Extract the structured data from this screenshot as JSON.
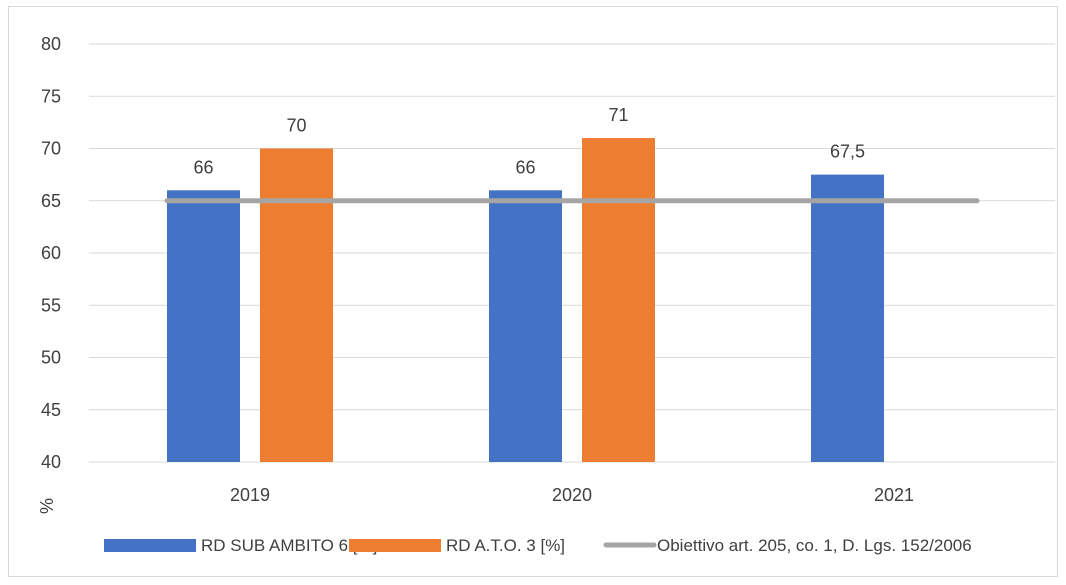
{
  "chart_data": {
    "type": "bar",
    "categories": [
      "2019",
      "2020",
      "2021"
    ],
    "series": [
      {
        "name": "RD SUB AMBITO 6 [%]",
        "type": "bar",
        "color": "#4472c4",
        "values": [
          66,
          66,
          67.5
        ],
        "labels": [
          "66",
          "66",
          "67,5"
        ]
      },
      {
        "name": "RD A.T.O. 3 [%]",
        "type": "bar",
        "color": "#ed7d31",
        "values": [
          70,
          71,
          null
        ],
        "labels": [
          "70",
          "71",
          ""
        ]
      },
      {
        "name": "Obiettivo art. 205, co. 1, D. Lgs. 152/2006",
        "type": "line",
        "color": "#a5a5a5",
        "values": [
          65,
          65,
          65
        ]
      }
    ],
    "ylabel": "%",
    "ylim": [
      40,
      80
    ],
    "yticks": [
      40,
      45,
      50,
      55,
      60,
      65,
      70,
      75,
      80
    ],
    "grid": true,
    "legend_position": "bottom"
  }
}
